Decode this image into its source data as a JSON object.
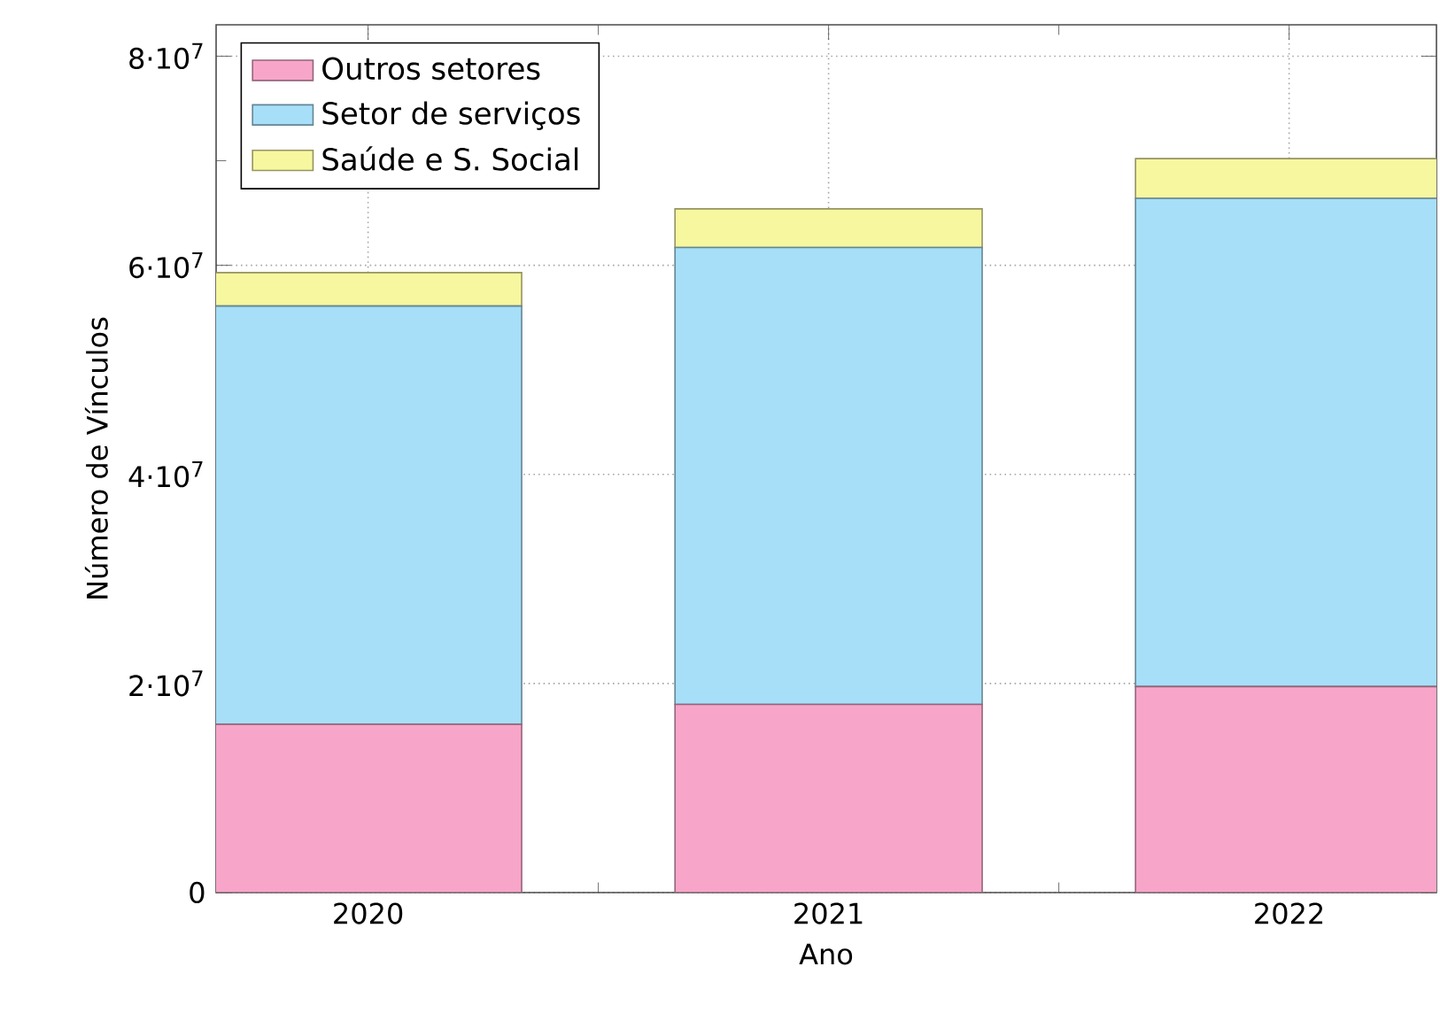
{
  "chart_data": {
    "type": "bar",
    "stacked": true,
    "xlabel": "Ano",
    "ylabel": "Número de Vínculos",
    "categories": [
      "2020",
      "2021",
      "2022"
    ],
    "series": [
      {
        "name": "Outros setores",
        "color": "#f7a6c9",
        "values": [
          16100000,
          18000000,
          19700000
        ]
      },
      {
        "name": "Setor de serviços",
        "color": "#a6dff7",
        "values": [
          40000000,
          43700000,
          46700000
        ]
      },
      {
        "name": "Saúde e S. Social",
        "color": "#f7f7a0",
        "values": [
          3200000,
          3700000,
          3800000
        ]
      }
    ],
    "ylim": [
      0,
      83000000
    ],
    "yticks": [
      0,
      {
        "value": 20000000,
        "label": "2·10$^{7}$"
      },
      {
        "value": 40000000,
        "label": "4·10$^{7}$"
      },
      {
        "value": 60000000,
        "label": "6·10$^{7}$"
      },
      {
        "value": 80000000,
        "label": "8·10$^{7}$"
      }
    ],
    "grid": true,
    "legend": "top left"
  }
}
